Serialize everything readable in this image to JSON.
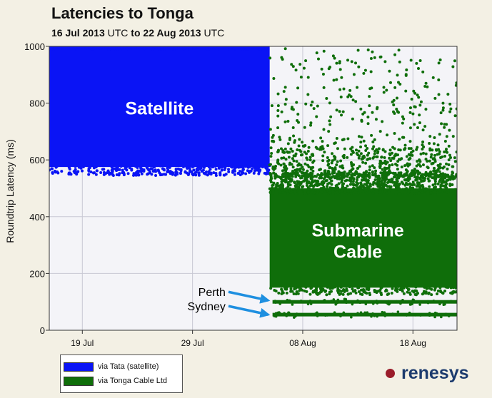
{
  "title_main": "Latencies to Tonga",
  "subtitle": {
    "start_date": "16 Jul 2013",
    "start_tz": "UTC",
    "connector": "to",
    "end_date": "22 Aug 2013",
    "end_tz": "UTC"
  },
  "brand": "renesys",
  "colors": {
    "satellite": "#0a14f5",
    "cable": "#0f6e0a",
    "arrow": "#1e8fe0",
    "brand_dot": "#9a1c2a",
    "brand_text": "#1c3b6e"
  },
  "chart_data": {
    "type": "scatter",
    "title": "Latencies to Tonga",
    "subtitle": "16 Jul 2013 UTC to 22 Aug 2013 UTC",
    "ylabel": "Roundtrip Latency (ms)",
    "xlabel": "",
    "ylim": [
      0,
      1000
    ],
    "xlim": [
      "2013-07-16",
      "2013-08-22"
    ],
    "y_ticks": [
      "0",
      "200",
      "400",
      "600",
      "800",
      "1000"
    ],
    "x_ticks": [
      {
        "date": "2013-07-19",
        "label": "19 Jul"
      },
      {
        "date": "2013-07-29",
        "label": "29 Jul"
      },
      {
        "date": "2013-08-08",
        "label": "08 Aug"
      },
      {
        "date": "2013-08-18",
        "label": "18 Aug"
      }
    ],
    "grid": true,
    "legend_position": "bottom-left",
    "series": [
      {
        "name": "via Tata (satellite)",
        "color": "#0a14f5",
        "x_range": [
          "2013-07-16",
          "2013-08-05"
        ],
        "dense_range_ms": [
          560,
          1000
        ]
      },
      {
        "name": "via Tonga Cable Ltd",
        "color": "#0f6e0a",
        "x_range": [
          "2013-08-05",
          "2013-08-22"
        ],
        "dense_range_ms": [
          150,
          540
        ],
        "sparse_range_ms": [
          540,
          1000
        ],
        "bands_ms": [
          100,
          55
        ]
      }
    ],
    "annotations": [
      {
        "text": "Satellite",
        "x": "2013-07-26",
        "y": 760,
        "color": "#ffffff"
      },
      {
        "text": "Submarine",
        "x": "2013-08-13",
        "y": 330,
        "color": "#ffffff"
      },
      {
        "text": "Cable",
        "x": "2013-08-13",
        "y": 255,
        "color": "#ffffff"
      },
      {
        "text": "Perth",
        "x": "2013-08-01",
        "y": 120,
        "color": "#000000",
        "arrow_to": {
          "x": "2013-08-05",
          "y": 105
        }
      },
      {
        "text": "Sydney",
        "x": "2013-08-01",
        "y": 70,
        "color": "#000000",
        "arrow_to": {
          "x": "2013-08-05",
          "y": 55
        }
      }
    ]
  }
}
